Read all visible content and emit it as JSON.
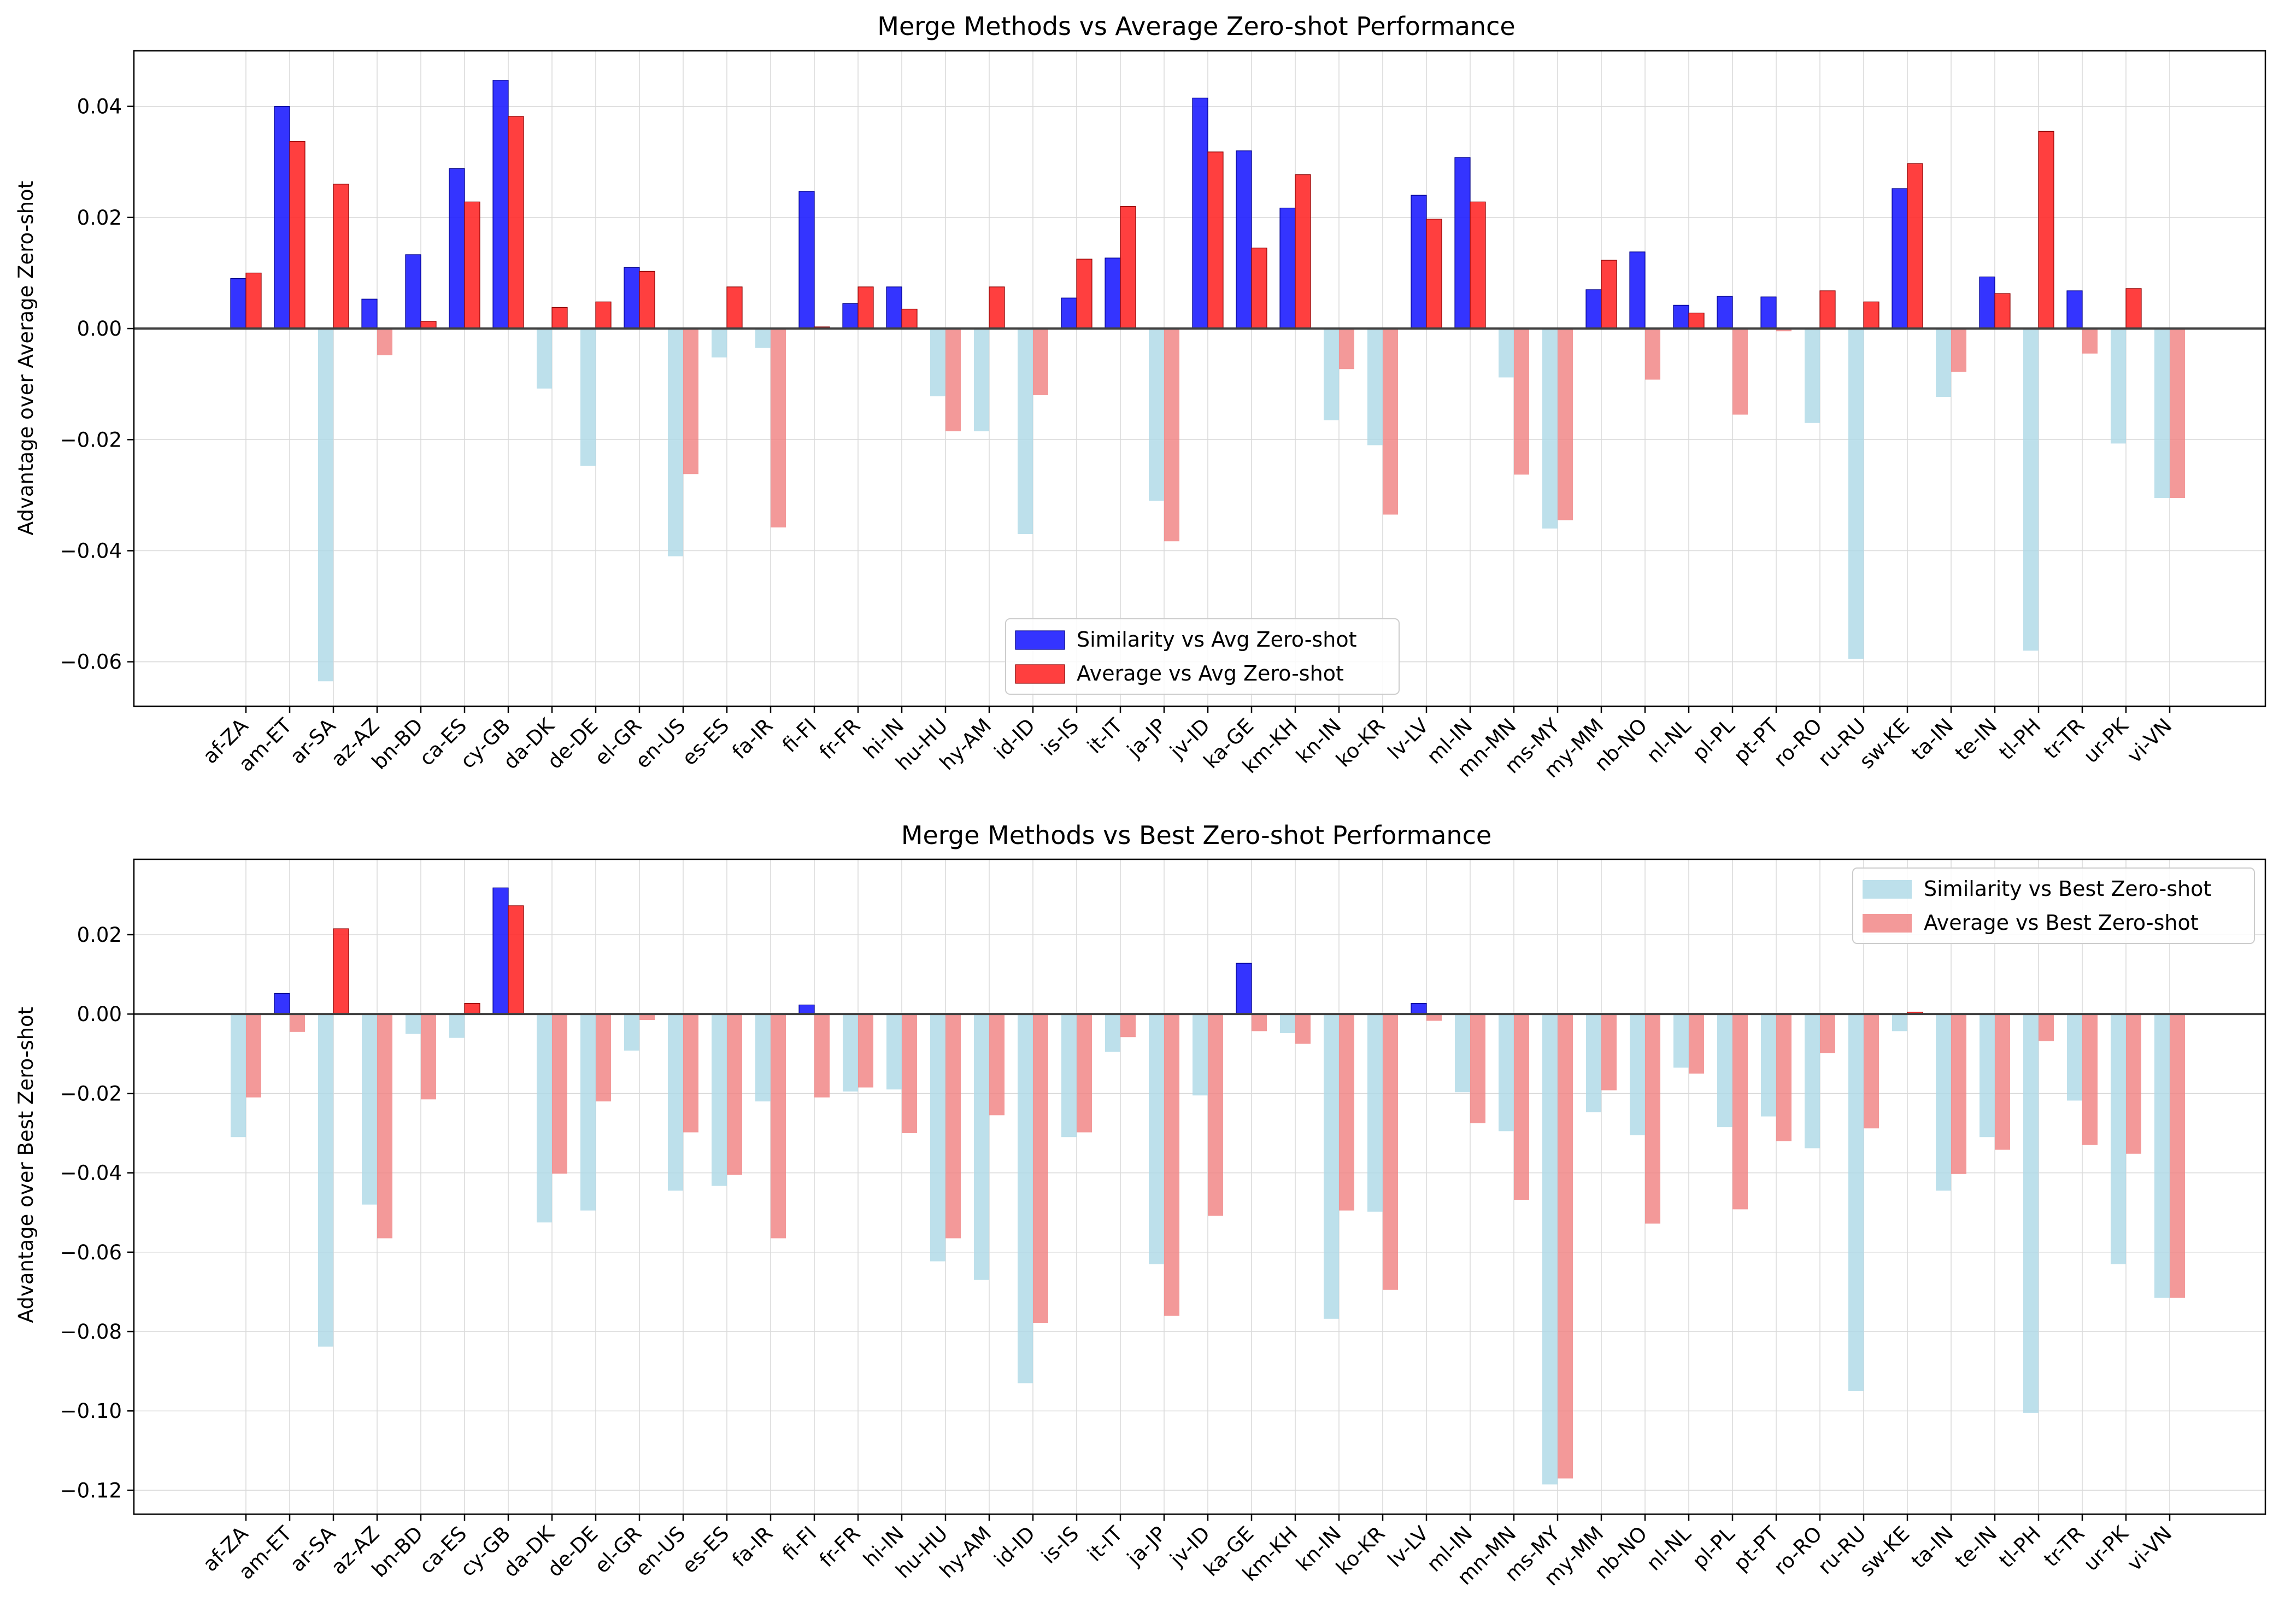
{
  "colors": {
    "sim_avg": "#1e1eff",
    "avg_avg": "#ff2a2a",
    "sim_neg": "#add8e6",
    "avg_neg": "#f08080",
    "frame": "#000000",
    "grid": "#d9d9d9",
    "zero_line": "#404040"
  },
  "chart_data": [
    {
      "type": "bar",
      "title": "Merge Methods vs Average Zero-shot Performance",
      "xlabel": "",
      "ylabel": "Advantage over Average Zero-shot",
      "ylim": [
        -0.068,
        0.05
      ],
      "yticks": [
        0.04,
        0.02,
        0.0,
        -0.02,
        -0.04,
        -0.06
      ],
      "ytick_labels": [
        "0.04",
        "0.02",
        "0.00",
        "−0.02",
        "−0.04",
        "−0.06"
      ],
      "grid": true,
      "legend_position": "lower-center",
      "categories": [
        "af-ZA",
        "am-ET",
        "ar-SA",
        "az-AZ",
        "bn-BD",
        "ca-ES",
        "cy-GB",
        "da-DK",
        "de-DE",
        "el-GR",
        "en-US",
        "es-ES",
        "fa-IR",
        "fi-FI",
        "fr-FR",
        "hi-IN",
        "hu-HU",
        "hy-AM",
        "id-ID",
        "is-IS",
        "it-IT",
        "ja-JP",
        "jv-ID",
        "ka-GE",
        "km-KH",
        "kn-IN",
        "ko-KR",
        "lv-LV",
        "ml-IN",
        "mn-MN",
        "ms-MY",
        "my-MM",
        "nb-NO",
        "nl-NL",
        "pl-PL",
        "pt-PT",
        "ro-RO",
        "ru-RU",
        "sw-KE",
        "ta-IN",
        "te-IN",
        "tl-PH",
        "tr-TR",
        "ur-PK",
        "vi-VN"
      ],
      "series": [
        {
          "name": "Similarity vs Avg Zero-shot",
          "color_positive": "#1e1eff",
          "color_negative": "#add8e6",
          "values": [
            0.009,
            0.04,
            -0.0635,
            0.0053,
            0.0133,
            0.0288,
            0.0447,
            -0.0108,
            -0.0247,
            0.011,
            -0.041,
            -0.0052,
            -0.0035,
            0.0247,
            0.0045,
            0.0075,
            -0.0122,
            -0.0185,
            -0.037,
            0.0055,
            0.0127,
            -0.031,
            0.0415,
            0.032,
            0.0217,
            -0.0165,
            -0.021,
            0.024,
            0.0308,
            -0.0088,
            -0.036,
            0.007,
            0.0138,
            0.0042,
            0.0058,
            0.0057,
            -0.017,
            -0.0595,
            0.0252,
            -0.0123,
            0.0093,
            -0.058,
            0.0068,
            -0.0207,
            -0.0305
          ]
        },
        {
          "name": "Average vs Avg Zero-shot",
          "color_positive": "#ff2a2a",
          "color_negative": "#f08080",
          "values": [
            0.01,
            0.0337,
            0.026,
            -0.0048,
            0.0013,
            0.0228,
            0.0382,
            0.0038,
            0.0048,
            0.0103,
            -0.0262,
            0.0075,
            -0.0358,
            0.0003,
            0.0075,
            0.0035,
            -0.0185,
            0.0075,
            -0.012,
            0.0125,
            0.022,
            -0.0383,
            0.0318,
            0.0145,
            0.0277,
            -0.0073,
            -0.0335,
            0.0197,
            0.0228,
            -0.0263,
            -0.0345,
            0.0123,
            -0.0092,
            0.0028,
            -0.0155,
            -0.0005,
            0.0068,
            0.0048,
            0.0297,
            -0.0078,
            0.0063,
            0.0355,
            -0.0045,
            0.0072,
            -0.0305
          ]
        }
      ]
    },
    {
      "type": "bar",
      "title": "Merge Methods vs Best Zero-shot Performance",
      "xlabel": "",
      "ylabel": "Advantage over Best Zero-shot",
      "ylim": [
        -0.126,
        0.039
      ],
      "yticks": [
        0.02,
        0.0,
        -0.02,
        -0.04,
        -0.06,
        -0.08,
        -0.1,
        -0.12
      ],
      "ytick_labels": [
        "0.02",
        "0.00",
        "−0.02",
        "−0.04",
        "−0.06",
        "−0.08",
        "−0.10",
        "−0.12"
      ],
      "grid": true,
      "legend_position": "top-right",
      "categories": [
        "af-ZA",
        "am-ET",
        "ar-SA",
        "az-AZ",
        "bn-BD",
        "ca-ES",
        "cy-GB",
        "da-DK",
        "de-DE",
        "el-GR",
        "en-US",
        "es-ES",
        "fa-IR",
        "fi-FI",
        "fr-FR",
        "hi-IN",
        "hu-HU",
        "hy-AM",
        "id-ID",
        "is-IS",
        "it-IT",
        "ja-JP",
        "jv-ID",
        "ka-GE",
        "km-KH",
        "kn-IN",
        "ko-KR",
        "lv-LV",
        "ml-IN",
        "mn-MN",
        "ms-MY",
        "my-MM",
        "nb-NO",
        "nl-NL",
        "pl-PL",
        "pt-PT",
        "ro-RO",
        "ru-RU",
        "sw-KE",
        "ta-IN",
        "te-IN",
        "tl-PH",
        "tr-TR",
        "ur-PK",
        "vi-VN"
      ],
      "series": [
        {
          "name": "Similarity vs Best Zero-shot",
          "color_positive": "#1e1eff",
          "color_negative": "#add8e6",
          "values": [
            -0.031,
            0.0052,
            -0.0838,
            -0.048,
            -0.005,
            -0.006,
            0.0318,
            -0.0525,
            -0.0495,
            -0.0092,
            -0.0445,
            -0.0433,
            -0.022,
            0.0023,
            -0.0195,
            -0.019,
            -0.0623,
            -0.067,
            -0.093,
            -0.031,
            -0.0095,
            -0.063,
            -0.0205,
            0.0128,
            -0.0048,
            -0.0768,
            -0.0498,
            0.0027,
            -0.0197,
            -0.0295,
            -0.1185,
            -0.0247,
            -0.0305,
            -0.0135,
            -0.0285,
            -0.0258,
            -0.0338,
            -0.095,
            -0.0043,
            -0.0445,
            -0.031,
            -0.1005,
            -0.0218,
            -0.063,
            -0.0715
          ]
        },
        {
          "name": "Average vs Best Zero-shot",
          "color_positive": "#ff2a2a",
          "color_negative": "#f08080",
          "values": [
            -0.021,
            -0.0045,
            0.0215,
            -0.0565,
            -0.0215,
            0.0027,
            0.0273,
            -0.0402,
            -0.022,
            -0.0015,
            -0.0298,
            -0.0405,
            -0.0565,
            -0.021,
            -0.0185,
            -0.03,
            -0.0565,
            -0.0255,
            -0.0778,
            -0.0298,
            -0.0058,
            -0.076,
            -0.0508,
            -0.0043,
            -0.0075,
            -0.0495,
            -0.0695,
            -0.0017,
            -0.0275,
            -0.0468,
            -0.117,
            -0.0192,
            -0.0528,
            -0.015,
            -0.0492,
            -0.032,
            -0.0098,
            -0.0288,
            0.0005,
            -0.0403,
            -0.0342,
            -0.0068,
            -0.033,
            -0.0352,
            -0.0715
          ]
        }
      ]
    }
  ]
}
